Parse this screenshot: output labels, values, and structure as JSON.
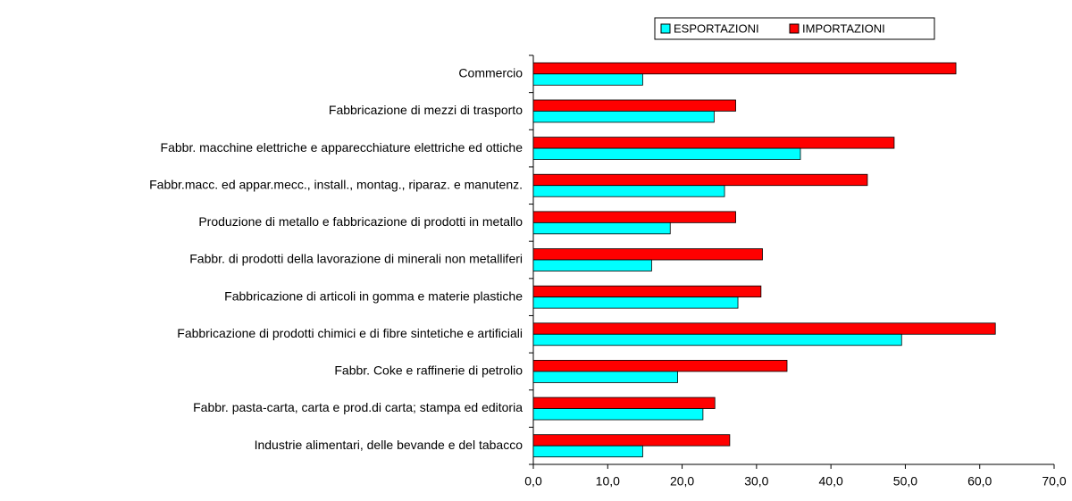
{
  "chart_data": {
    "type": "hbar",
    "categories": [
      "Commercio",
      "Fabbricazione di mezzi di trasporto",
      "Fabbr. macchine elettriche e apparecchiature elettriche ed ottiche",
      "Fabbr.macc. ed appar.mecc., install., montag., riparaz. e manutenz.",
      "Produzione di metallo e fabbricazione di prodotti in metallo",
      "Fabbr. di prodotti della lavorazione di minerali non metalliferi",
      "Fabbricazione di articoli in gomma e materie plastiche",
      "Fabbricazione di prodotti chimici e di fibre sintetiche e artificiali",
      "Fabbr. Coke e raffinerie di petrolio",
      "Fabbr. pasta-carta, carta e prod.di carta; stampa ed editoria",
      "Industrie alimentari, delle bevande e del tabacco"
    ],
    "series": [
      {
        "name": "ESPORTAZIONI",
        "color": "#00ffff",
        "values": [
          14.7,
          24.3,
          35.9,
          25.7,
          18.4,
          15.9,
          27.5,
          49.5,
          19.4,
          22.8,
          14.7
        ]
      },
      {
        "name": "IMPORTAZIONI",
        "color": "#ff0000",
        "values": [
          56.8,
          27.2,
          48.5,
          44.9,
          27.2,
          30.8,
          30.6,
          62.1,
          34.1,
          24.4,
          26.4
        ]
      }
    ],
    "xlim": [
      0,
      70
    ],
    "xticks": [
      {
        "value": 0,
        "label": "0,0"
      },
      {
        "value": 10,
        "label": "10,0"
      },
      {
        "value": 20,
        "label": "20,0"
      },
      {
        "value": 30,
        "label": "30,0"
      },
      {
        "value": 40,
        "label": "40,0"
      },
      {
        "value": 50,
        "label": "50,0"
      },
      {
        "value": 60,
        "label": "60,0"
      },
      {
        "value": 70,
        "label": "70,0"
      }
    ],
    "legend": "top"
  }
}
